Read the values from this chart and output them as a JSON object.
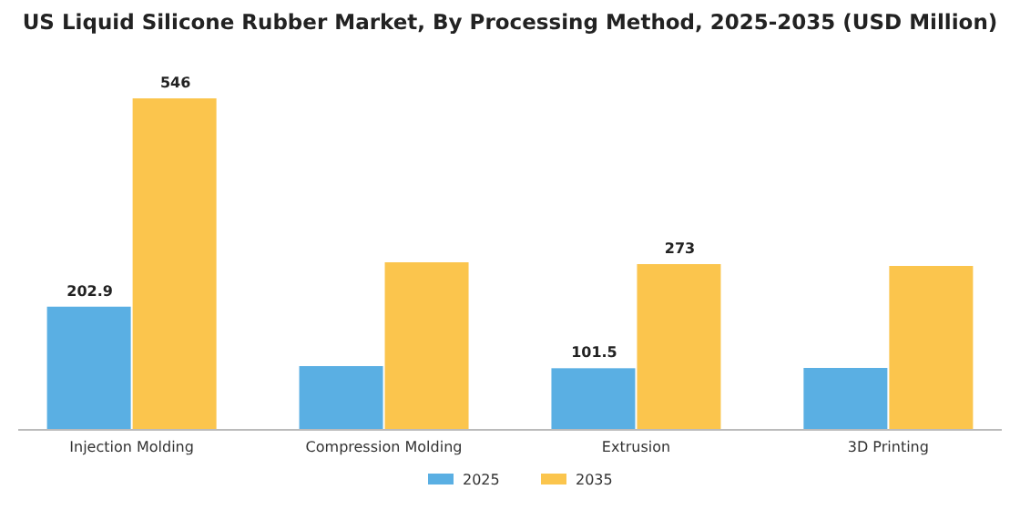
{
  "chart_data": {
    "type": "bar",
    "title": "US Liquid Silicone Rubber Market, By Processing Method, 2025-2035 (USD Million)",
    "categories": [
      "Injection Molding",
      "Compression Molding",
      "Extrusion",
      "3D Printing"
    ],
    "series": [
      {
        "name": "2025",
        "color": "#5aafe3",
        "values": [
          202.9,
          105,
          101.5,
          102
        ],
        "value_labels": [
          "202.9",
          null,
          "101.5",
          null
        ]
      },
      {
        "name": "2035",
        "color": "#fbc54d",
        "values": [
          546,
          276,
          273,
          270
        ],
        "value_labels": [
          "546",
          null,
          "273",
          null
        ]
      }
    ],
    "legend": "bottom",
    "grid": false
  }
}
